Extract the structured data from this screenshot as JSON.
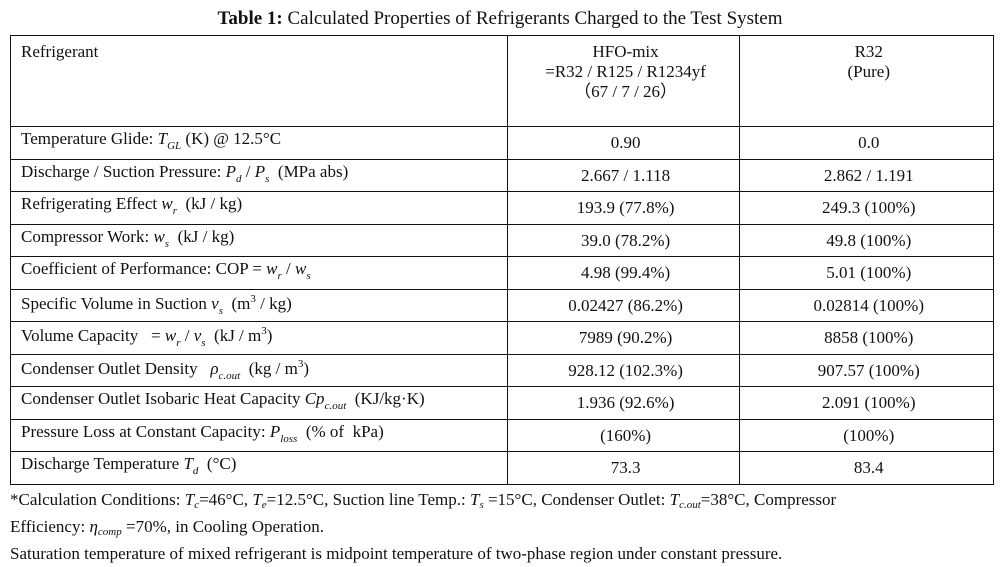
{
  "caption": {
    "label": "Table 1:",
    "text": " Calculated Properties of Refrigerants Charged to the Test System"
  },
  "header": {
    "col1": "Refrigerant",
    "col2_line1": "HFO-mix",
    "col2_line2": "=R32 / R125 / R1234yf",
    "col2_line3": "（67 / 7 / 26）",
    "col3_line1": "R32",
    "col3_line2": "(Pure)"
  },
  "rows": [
    {
      "label_a": "Temperature Glide: ",
      "sym": "T",
      "sub": "GL",
      "label_b": " (K) @ 12.5°C",
      "hfo": "0.90",
      "r32": "0.0"
    },
    {
      "label_a": "Discharge / Suction Pressure: ",
      "sym": "P",
      "sub": "d",
      "mid": " / ",
      "sym2": "P",
      "sub2": "s",
      "label_b": "  (MPa abs)",
      "hfo": "2.667 / 1.118",
      "r32": "2.862 / 1.191"
    },
    {
      "label_a": "Refrigerating Effect ",
      "sym": "w",
      "sub": "r",
      "label_b": "  (kJ / kg)",
      "hfo": "193.9 (77.8%)",
      "r32": "249.3 (100%)"
    },
    {
      "label_a": "Compressor Work: ",
      "sym": "w",
      "sub": "s",
      "label_b": "  (kJ / kg)",
      "hfo": "39.0 (78.2%)",
      "r32": "49.8 (100%)"
    },
    {
      "label_a": "Coefficient of Performance: COP = ",
      "sym": "w",
      "sub": "r",
      "mid": " / ",
      "sym2": "w",
      "sub2": "s",
      "label_b": "",
      "hfo": "4.98 (99.4%)",
      "r32": "5.01 (100%)"
    },
    {
      "label_a": "Specific Volume in Suction ",
      "sym": "v",
      "sub": "s",
      "label_b": "  (m",
      "sup": "3",
      "label_c": " / kg)",
      "hfo": "0.02427 (86.2%)",
      "r32": "0.02814 (100%)"
    },
    {
      "label_a": "Volume Capacity   = ",
      "sym": "w",
      "sub": "r",
      "mid": " / ",
      "sym2": "v",
      "sub2": "s",
      "label_b": "  (kJ / m",
      "sup": "3",
      "label_c": ")",
      "hfo": "7989 (90.2%)",
      "r32": "8858 (100%)"
    },
    {
      "label_a": "Condenser Outlet Density   ",
      "sym": "ρ",
      "sub": "c.out",
      "label_b": "  (kg / m",
      "sup": "3",
      "label_c": ")",
      "hfo": "928.12 (102.3%)",
      "r32": "907.57 (100%)"
    },
    {
      "label_a": "Condenser Outlet Isobaric Heat Capacity ",
      "sym": "Cp",
      "sub": "c.out",
      "label_b": "  (KJ/kg·K)",
      "hfo": "1.936 (92.6%)",
      "r32": "2.091 (100%)"
    },
    {
      "label_a": "Pressure Loss at Constant Capacity: ",
      "sym": "P",
      "sub": "loss",
      "label_b": "  (% of  kPa)",
      "hfo": "(160%)",
      "r32": "(100%)"
    },
    {
      "label_a": "Discharge Temperature ",
      "sym": "T",
      "sub": "d",
      "label_b": "  (°C)",
      "hfo": "73.3",
      "r32": "83.4"
    }
  ],
  "notes": {
    "l1_a": "*Calculation Conditions: ",
    "l1_tc": "T",
    "l1_tc_sub": "c",
    "l1_b": "=46°C, ",
    "l1_te": "T",
    "l1_te_sub": "e",
    "l1_c": "=12.5°C, Suction line Temp.: ",
    "l1_ts": "T",
    "l1_ts_sub": "s",
    "l1_d": " =15°C, Condenser Outlet: ",
    "l1_tco": "T",
    "l1_tco_sub": "c.out",
    "l1_e": "=38°C, Compressor",
    "l2_a": "Efficiency: ",
    "l2_eta": "η",
    "l2_eta_sub": "comp",
    "l2_b": " =70%, in Cooling Operation.",
    "l3": "Saturation temperature of mixed refrigerant is midpoint temperature of two-phase region under constant pressure."
  }
}
